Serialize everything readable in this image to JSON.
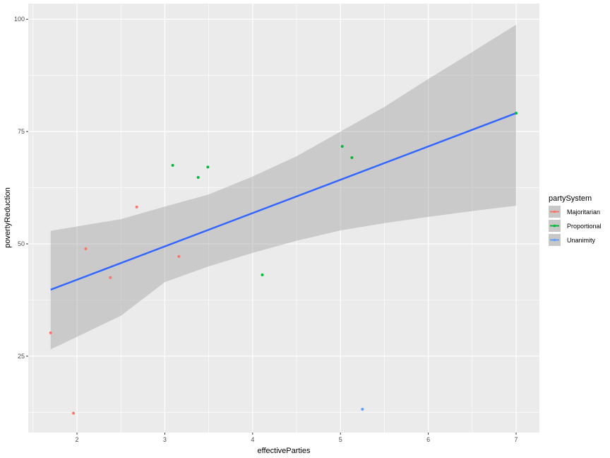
{
  "chart_data": {
    "type": "scatter",
    "xlabel": "effectiveParties",
    "ylabel": "povertyReduction",
    "xlim": [
      1.445,
      7.265
    ],
    "ylim": [
      8.0,
      103.5
    ],
    "xticks": [
      2,
      3,
      4,
      5,
      6,
      7
    ],
    "yticks": [
      25,
      50,
      75,
      100
    ],
    "grid": true,
    "legend": {
      "title": "partySystem",
      "position": "right",
      "entries": [
        "Majoritarian",
        "Proportional",
        "Unanimity"
      ]
    },
    "colors": {
      "Majoritarian": "#F8766D",
      "Proportional": "#00BA38",
      "Unanimity": "#619CFF",
      "fit": "#3366FF",
      "ribbon": "#C8C8C8",
      "panel": "#EBEBEB"
    },
    "series": [
      {
        "name": "Majoritarian",
        "points": [
          [
            1.7,
            30.2
          ],
          [
            1.96,
            12.3
          ],
          [
            2.1,
            48.9
          ],
          [
            2.38,
            42.5
          ],
          [
            2.68,
            58.2
          ],
          [
            3.16,
            47.2
          ]
        ]
      },
      {
        "name": "Proportional",
        "points": [
          [
            3.09,
            67.5
          ],
          [
            3.38,
            64.8
          ],
          [
            3.49,
            67.1
          ],
          [
            4.11,
            43.1
          ],
          [
            5.02,
            71.7
          ],
          [
            5.13,
            69.2
          ],
          [
            7.0,
            79.1
          ]
        ]
      },
      {
        "name": "Unanimity",
        "points": [
          [
            5.25,
            13.2
          ]
        ]
      }
    ],
    "fit": {
      "method": "lm",
      "x": [
        1.7,
        7.0
      ],
      "y": [
        39.8,
        79.1
      ],
      "ribbon": {
        "x": [
          1.7,
          2.5,
          3,
          3.5,
          4,
          4.5,
          5,
          5.5,
          6,
          6.5,
          7
        ],
        "ymin": [
          26.5,
          34,
          41.5,
          45,
          48,
          50.7,
          53,
          54.6,
          56,
          57.3,
          58.5
        ],
        "ymax": [
          52.9,
          55.5,
          58.3,
          61,
          65,
          69.5,
          75,
          80.5,
          86.7,
          92.7,
          98.8
        ]
      }
    }
  }
}
